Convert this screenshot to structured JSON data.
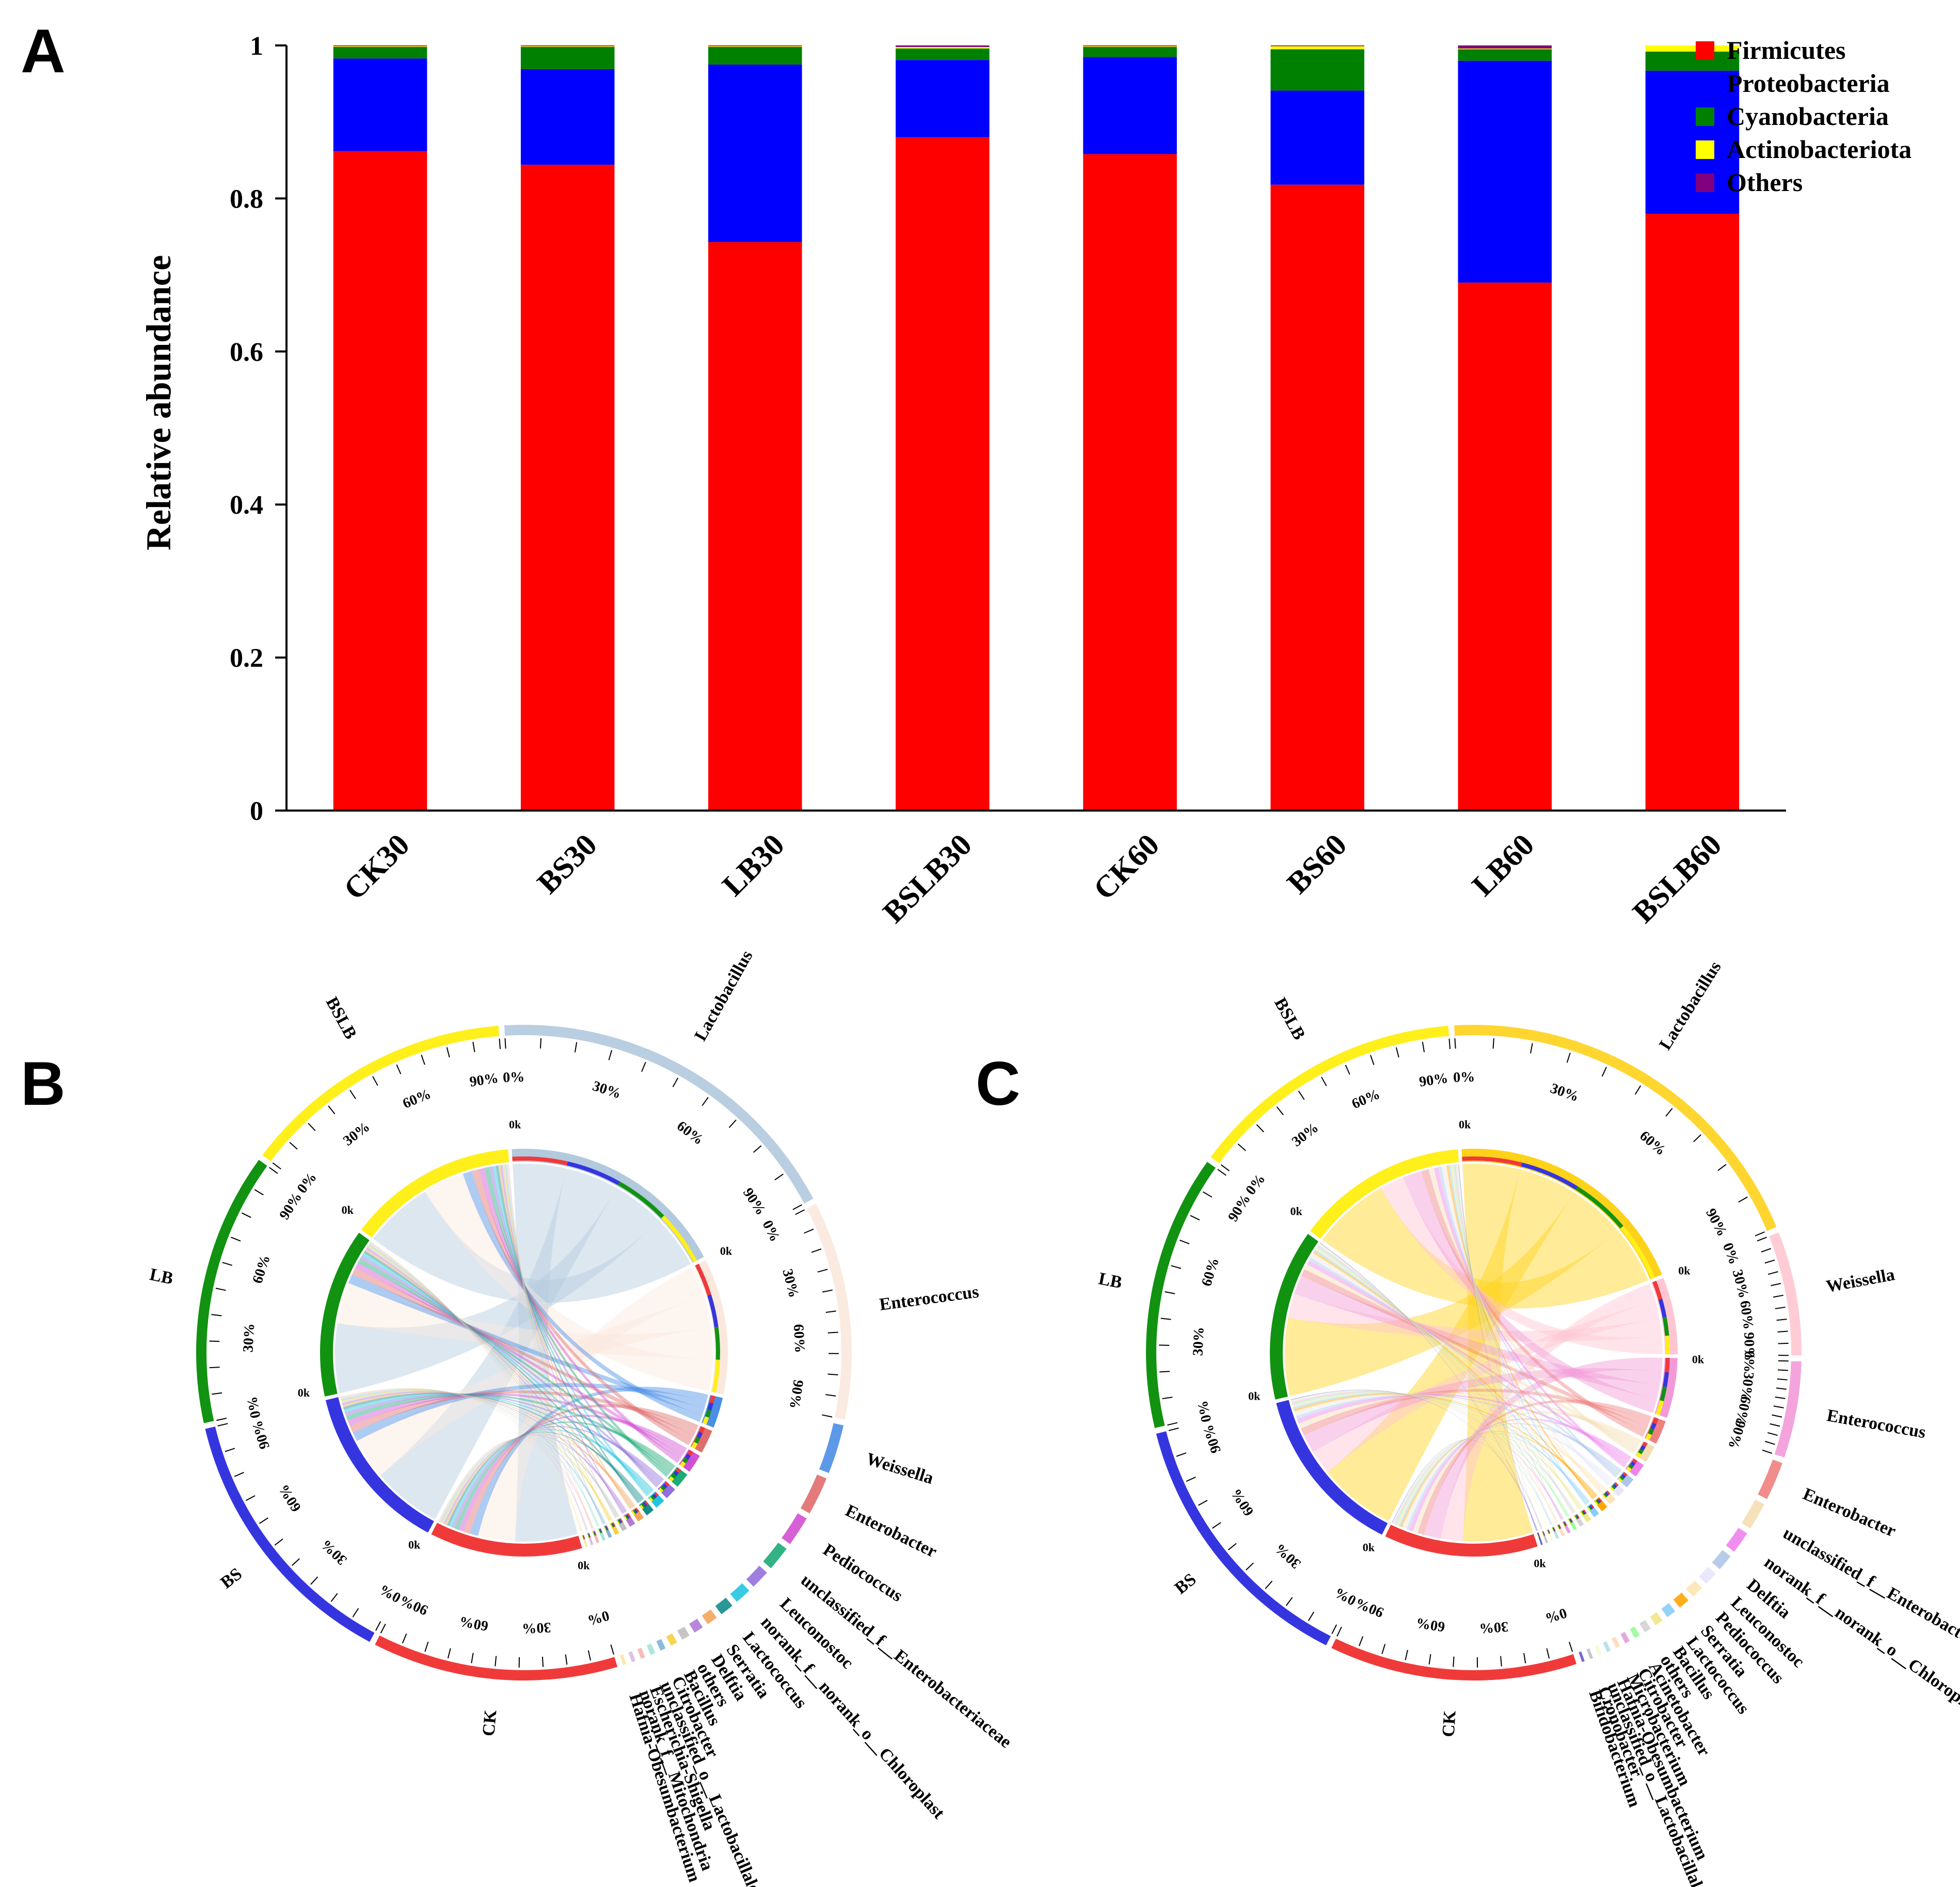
{
  "chart_data": [
    {
      "panel_label": "A",
      "type": "bar",
      "stacked": true,
      "title": "",
      "xlabel": "",
      "ylabel": "Relative abundance",
      "ylim": [
        0,
        1
      ],
      "yticks": [
        "0",
        "0.2",
        "0.4",
        "0.6",
        "0.8",
        "1"
      ],
      "ytick_values": [
        0,
        0.2,
        0.4,
        0.6,
        0.8,
        1.0
      ],
      "categories": [
        "CK30",
        "BS30",
        "LB30",
        "BSLB30",
        "CK60",
        "BS60",
        "LB60",
        "BSLB60"
      ],
      "legend_position": "top-right",
      "series": [
        {
          "name": "Firmicutes",
          "color": "#ff0000",
          "values": [
            0.862,
            0.844,
            0.743,
            0.88,
            0.858,
            0.818,
            0.69,
            0.78
          ]
        },
        {
          "name": "Proteobacteria",
          "color": "#0000ff",
          "values": [
            0.121,
            0.125,
            0.232,
            0.101,
            0.127,
            0.123,
            0.29,
            0.187
          ]
        },
        {
          "name": "Cyanobacteria",
          "color": "#008000",
          "values": [
            0.015,
            0.029,
            0.023,
            0.015,
            0.013,
            0.054,
            0.015,
            0.025
          ]
        },
        {
          "name": "Actinobacteriota",
          "color": "#ffff00",
          "values": [
            0.001,
            0.001,
            0.001,
            0.002,
            0.001,
            0.004,
            0.001,
            0.008
          ]
        },
        {
          "name": "Others",
          "color": "#800080",
          "values": [
            0.001,
            0.001,
            0.001,
            0.002,
            0.001,
            0.001,
            0.004,
            0.0
          ]
        }
      ]
    },
    {
      "panel_label": "B",
      "type": "chord",
      "tick_labels": [
        "0%",
        "30%",
        "60%",
        "90%"
      ],
      "small_tick_label": "0k",
      "sample_color": {
        "CK": "#f03a3a",
        "BS": "#3535e0",
        "LB": "#119211",
        "BSLB": "#ffef1a"
      },
      "samples": [
        {
          "name": "CK",
          "share": 0.9,
          "color": "#f03a3a"
        },
        {
          "name": "BS",
          "share": 1.0,
          "color": "#3535e0"
        },
        {
          "name": "LB",
          "share": 1.0,
          "color": "#119211"
        },
        {
          "name": "BSLB",
          "share": 1.0,
          "color": "#ffef1a"
        }
      ],
      "taxa": [
        {
          "name": "Lactobacillus",
          "share": 1.35,
          "color": "#b3c9de"
        },
        {
          "name": "Enterococcus",
          "share": 0.8,
          "color": "#fbe8dd"
        },
        {
          "name": "Weissella",
          "share": 0.18,
          "color": "#4a8ee6"
        },
        {
          "name": "Enterobacter",
          "share": 0.14,
          "color": "#e06d6d"
        },
        {
          "name": "Pediococcus",
          "share": 0.11,
          "color": "#d24fd2"
        },
        {
          "name": "unclassified_f__Enterobacteriaceae",
          "share": 0.09,
          "color": "#1caa78"
        },
        {
          "name": "Leuconostoc",
          "share": 0.07,
          "color": "#9370db"
        },
        {
          "name": "norank_f__norank_o__Chloroplast",
          "share": 0.06,
          "color": "#22c5e0"
        },
        {
          "name": "Lactococcus",
          "share": 0.05,
          "color": "#138c8c"
        },
        {
          "name": "Serratia",
          "share": 0.04,
          "color": "#f2a55b"
        },
        {
          "name": "Delftia",
          "share": 0.035,
          "color": "#b07ad6"
        },
        {
          "name": "others",
          "share": 0.03,
          "color": "#bfbfbf"
        },
        {
          "name": "Bacillus",
          "share": 0.025,
          "color": "#f4d03f"
        },
        {
          "name": "Citrobacter",
          "share": 0.02,
          "color": "#7fb3d5"
        },
        {
          "name": "unclassified_o__Lactobacillales",
          "share": 0.018,
          "color": "#a3e4d7"
        },
        {
          "name": "Escherichia-Shigella",
          "share": 0.016,
          "color": "#f5b7b1"
        },
        {
          "name": "norank_f__Mitochondria",
          "share": 0.014,
          "color": "#d7bde2"
        },
        {
          "name": "Hafnia-Obesumbacterium",
          "share": 0.012,
          "color": "#f9e79f"
        }
      ]
    },
    {
      "panel_label": "C",
      "type": "chord",
      "tick_labels": [
        "0%",
        "30%",
        "60%",
        "90%"
      ],
      "small_tick_label": "0k",
      "sample_color": {
        "CK": "#f03a3a",
        "BS": "#3535e0",
        "LB": "#119211",
        "BSLB": "#ffef1a"
      },
      "samples": [
        {
          "name": "CK",
          "share": 0.9,
          "color": "#f03a3a"
        },
        {
          "name": "BS",
          "share": 1.0,
          "color": "#3535e0"
        },
        {
          "name": "LB",
          "share": 1.0,
          "color": "#119211"
        },
        {
          "name": "BSLB",
          "share": 1.0,
          "color": "#ffef1a"
        }
      ],
      "taxa": [
        {
          "name": "Lactobacillus",
          "share": 1.45,
          "color": "#ffd21a"
        },
        {
          "name": "Weissella",
          "share": 0.45,
          "color": "#ffc6d2"
        },
        {
          "name": "Enterococcus",
          "share": 0.35,
          "color": "#f29ad8"
        },
        {
          "name": "Enterobacter",
          "share": 0.14,
          "color": "#f08080"
        },
        {
          "name": "unclassified_f__Enterobacteriaceae",
          "share": 0.1,
          "color": "#f5deb3"
        },
        {
          "name": "norank_f__norank_o__Chloroplast",
          "share": 0.08,
          "color": "#ee82ee"
        },
        {
          "name": "Delftia",
          "share": 0.06,
          "color": "#aec6e8"
        },
        {
          "name": "Leuconostoc",
          "share": 0.05,
          "color": "#e6e6fa"
        },
        {
          "name": "Pediococcus",
          "share": 0.045,
          "color": "#ffe4b5"
        },
        {
          "name": "Serratia",
          "share": 0.04,
          "color": "#ffa500"
        },
        {
          "name": "Lactococcus",
          "share": 0.035,
          "color": "#87cefa"
        },
        {
          "name": "Bacillus",
          "share": 0.03,
          "color": "#f0e68c"
        },
        {
          "name": "others",
          "share": 0.025,
          "color": "#d3d3d3"
        },
        {
          "name": "Acinetobacter",
          "share": 0.02,
          "color": "#98fb98"
        },
        {
          "name": "Citrobacter",
          "share": 0.018,
          "color": "#dda0dd"
        },
        {
          "name": "Microbacterium",
          "share": 0.016,
          "color": "#ffdab9"
        },
        {
          "name": "Hafnia-Obesumbacterium",
          "share": 0.014,
          "color": "#b0e0e6"
        },
        {
          "name": "unclassified_o__Lactobacillales",
          "share": 0.012,
          "color": "#fafad2"
        },
        {
          "name": "Cronobacter",
          "share": 0.011,
          "color": "#c0c0c0"
        },
        {
          "name": "Bifidobacterium",
          "share": 0.01,
          "color": "#6a5acd"
        }
      ]
    }
  ]
}
